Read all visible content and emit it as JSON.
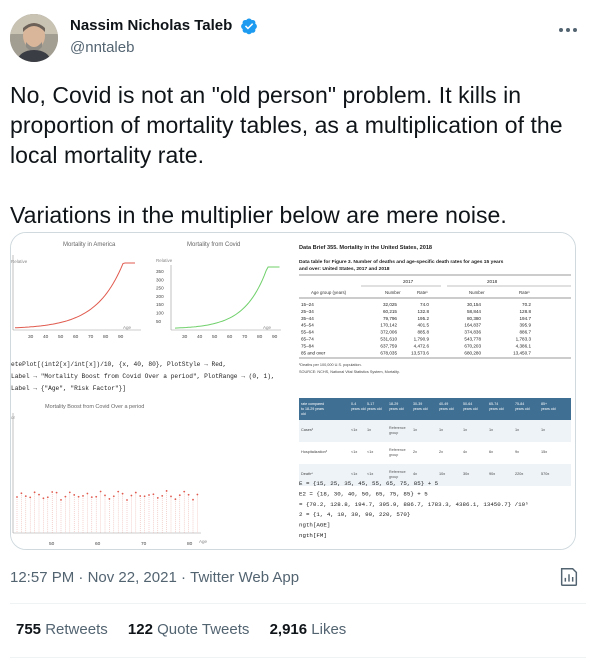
{
  "author": {
    "name": "Nassim Nicholas Taleb",
    "handle": "@nntaleb",
    "verified": true
  },
  "tweet": {
    "text": "No, Covid is not an \"old person\" problem. It kills in proportion of mortality tables, as a multiplication of the local mortality rate.\n\nVariations in the multiplier below are mere noise."
  },
  "meta": {
    "time": "12:57 PM",
    "separator": "·",
    "date": "Nov 22, 2021",
    "source": "Twitter Web App"
  },
  "stats": [
    {
      "count": "755",
      "label": "Retweets"
    },
    {
      "count": "122",
      "label": "Quote Tweets"
    },
    {
      "count": "2,916",
      "label": "Likes"
    }
  ],
  "image": {
    "chart1": {
      "title": "Mortality in America",
      "ylabel": "Relative",
      "xlabel": "Age",
      "xticks": [
        "30",
        "40",
        "50",
        "60",
        "70",
        "80",
        "90"
      ],
      "color": "#e05a4e"
    },
    "chart2": {
      "title": "Mortality from Covid",
      "ylabel": "Relative",
      "xlabel": "Age",
      "xticks": [
        "30",
        "40",
        "50",
        "60",
        "70",
        "80",
        "90"
      ],
      "yticks": [
        "350",
        "300",
        "250",
        "200",
        "150",
        "100",
        "50"
      ],
      "color": "#6fd06a"
    },
    "code_lines": [
      "etePlot[(int2[x]/int[x])/10, {x, 40, 80}, PlotStyle → Red,",
      "Label → \"Mortality Boost from Covid Over a period\", PlotRange → (0, 1),",
      "Label → {\"Age\", \"Risk Factor\"}]"
    ],
    "chart3": {
      "title": "Mortality Boost from Covid Over a period",
      "ylabel": "or",
      "xlabel": "Age",
      "xticks": [
        "50",
        "60",
        "70",
        "80"
      ],
      "color": "#e05a4e"
    },
    "table1": {
      "title": "Data Brief 355. Mortality in the United States, 2018",
      "subtitle": "Data table for Figure 3. Number of deaths and age-specific death rates for ages 15 years and over: United States, 2017 and 2018",
      "years": [
        "2017",
        "2018"
      ],
      "columns": [
        "Age group (years)",
        "Number",
        "Rate¹",
        "Number",
        "Rate¹"
      ],
      "rows": [
        [
          "15–24",
          "32,025",
          "74.0",
          "30,154",
          "70.2"
        ],
        [
          "25–34",
          "60,215",
          "132.8",
          "58,844",
          "128.8"
        ],
        [
          "35–44",
          "79,796",
          "195.2",
          "80,380",
          "194.7"
        ],
        [
          "45–54",
          "170,142",
          "401.5",
          "164,837",
          "395.9"
        ],
        [
          "55–64",
          "372,006",
          "885.8",
          "374,836",
          "886.7"
        ],
        [
          "65–74",
          "531,610",
          "1,790.9",
          "543,778",
          "1,783.3"
        ],
        [
          "75–84",
          "637,759",
          "4,472.6",
          "670,203",
          "4,386.1"
        ],
        [
          "85 and over",
          "678,035",
          "13,573.6",
          "680,280",
          "13,450.7"
        ]
      ],
      "footnote1": "¹Deaths per 100,000 U.S. population.",
      "footnote2": "SOURCE: NCHS, National Vital Statistics System, Mortality."
    },
    "table2": {
      "header": [
        "rate compared to 18-29 years old",
        "0-4 years old",
        "5-17 years old",
        "18-29 years old",
        "30-39 years old",
        "40-49 years old",
        "50-64 years old",
        "65-74 years old",
        "75-84 years old",
        "85+ years old"
      ],
      "rows": [
        [
          "Cases²",
          "<1x",
          "1x",
          "Reference group",
          "1x",
          "1x",
          "1x",
          "1x",
          "1x",
          "1x"
        ],
        [
          "Hospitalization³",
          "<1x",
          "<1x",
          "Reference group",
          "2x",
          "2x",
          "4x",
          "6x",
          "9x",
          "15x"
        ],
        [
          "Death⁴",
          "<1x",
          "<1x",
          "Reference group",
          "4x",
          "10x",
          "30x",
          "90x",
          "220x",
          "570x"
        ]
      ]
    },
    "code2_lines": [
      "E = {15, 25, 35, 45, 55, 65, 75, 85} + 5",
      "E2 = {18, 30, 40, 50, 65, 75, 85} + 5",
      "= {70.2, 128.8, 194.7, 395.9, 886.7, 1783.3, 4386.1, 13450.7} /10⁵",
      "2 = {1, 4, 10, 30, 90, 220, 570}",
      "ngth[AGE]",
      "ngth[FM]"
    ]
  },
  "colors": {
    "text": "#0f1419",
    "secondary": "#536471",
    "verified": "#1d9bf0",
    "border": "#cfd9de"
  },
  "icons": [
    "verified-badge-icon",
    "more-options-icon",
    "analytics-icon"
  ]
}
